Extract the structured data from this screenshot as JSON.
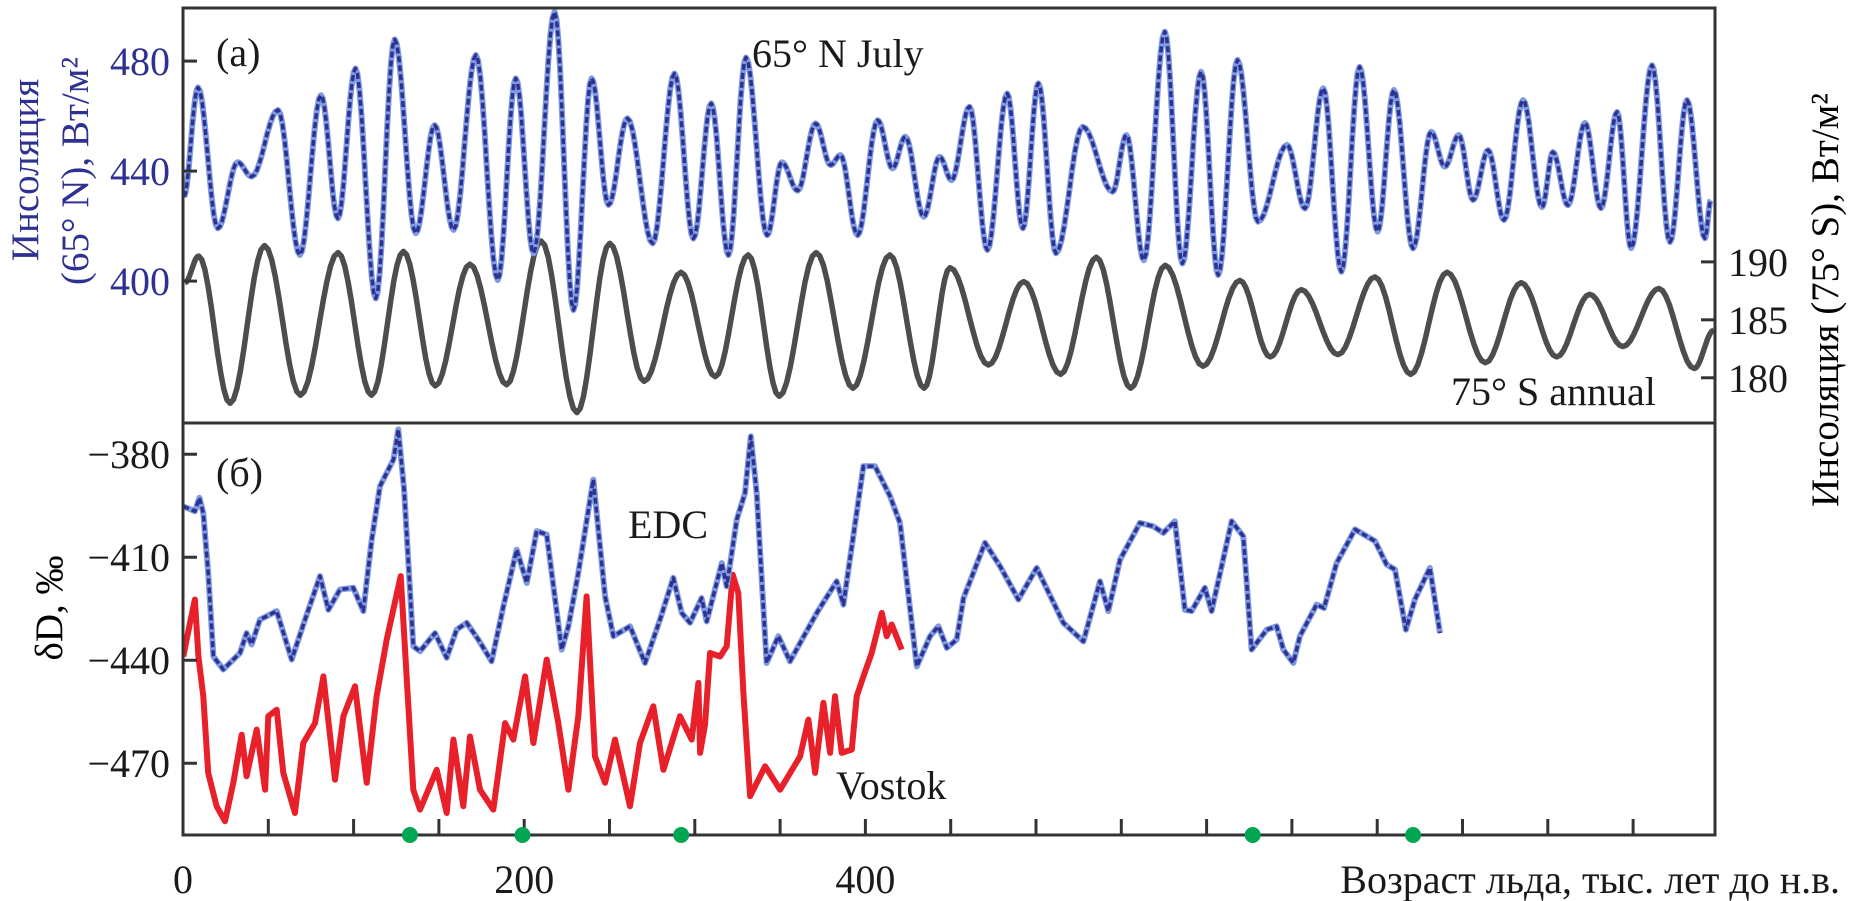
{
  "figure": {
    "x_label": "Возраст льда, тыс. лет до н.в.",
    "x_ticks": [
      "0",
      "200",
      "400"
    ],
    "x_tick_values": [
      0,
      200,
      400
    ],
    "xlim": [
      0,
      898
    ],
    "minor_tick_step": 50,
    "markers": {
      "name": "green dots on age axis",
      "ages": [
        133,
        199,
        292,
        627,
        721
      ],
      "color": "#00a651"
    }
  },
  "colors": {
    "blue": "#2e3192",
    "blue_light": "#7f9be0",
    "gray": "#4d4d4d",
    "red": "#e8202a",
    "green": "#00a651",
    "axis": "#333333"
  },
  "chart_data": [
    {
      "type": "line",
      "panel_label": "(a)",
      "left_axis": {
        "label_line1": "Инсоляция",
        "label_line2": "(65° N), Вт/м²",
        "ticks": [
          "480",
          "440",
          "400"
        ],
        "tick_values": [
          480,
          440,
          400
        ],
        "ylim": [
          348.4,
          499.3
        ]
      },
      "right_axis": {
        "label": "Инсоляция (75° S), Вт/м²",
        "ticks": [
          "190",
          "185",
          "180"
        ],
        "tick_values": [
          190,
          185,
          180
        ],
        "ylim": [
          176.1,
          211.9
        ]
      },
      "series": [
        {
          "name": "65° N July",
          "axis": "left",
          "x_extrema": [
            0.5,
            8.8,
            20.4,
            32.0,
            40.2,
            55.7,
            68.5,
            80.9,
            90.8,
            101.1,
            113.0,
            124.1,
            136.4,
            147.5,
            158.6,
            171.7,
            184.5,
            195.1,
            205.5,
            217.8,
            228.9,
            239.5,
            249.4,
            260.5,
            275.3,
            288.1,
            299.2,
            309.6,
            319.7,
            330.0,
            342.4,
            351.0,
            360.3,
            370.8,
            379.6,
            385.4,
            395.4,
            407.2,
            415.9,
            423.4,
            434.2,
            443.5,
            450.5,
            461.0,
            471.5,
            483.1,
            492.3,
            501.4,
            511.7,
            527.4,
            544.9,
            553.0,
            563.2,
            575.5,
            585.8,
            596.8,
            606.8,
            618.1,
            630.1,
            647.1,
            657.7,
            668.4,
            679.0,
            689.7,
            700.2,
            709.8,
            721.0,
            731.6,
            739.6,
            747.8,
            756.2,
            765.0,
            774.3,
            785.5,
            796.6,
            803.0,
            811.8,
            821.8,
            831.2,
            840.6,
            848.8,
            861.1,
            871.6,
            881.6,
            892.1,
            895.6
          ],
          "y_extrema": [
            430.7,
            470.4,
            419.2,
            443.2,
            438.0,
            462.2,
            409.5,
            467.6,
            422.8,
            477.3,
            393.7,
            487.9,
            417.4,
            456.7,
            418.6,
            482.2,
            400.4,
            473.7,
            410.1,
            497.9,
            389.5,
            473.7,
            427.7,
            459.2,
            413.7,
            475.5,
            415.5,
            464.6,
            409.5,
            481.3,
            416.7,
            443.2,
            432.9,
            457.3,
            442.2,
            445.8,
            416.7,
            458.5,
            441.0,
            452.5,
            423.4,
            445.2,
            436.7,
            463.4,
            411.3,
            468.2,
            419.2,
            471.9,
            410.1,
            456.1,
            432.5,
            453.1,
            407.6,
            490.7,
            406.4,
            476.1,
            402.2,
            480.4,
            421.6,
            449.5,
            426.4,
            470.1,
            403.4,
            477.9,
            418.0,
            469.5,
            411.9,
            454.3,
            441.6,
            453.1,
            429.5,
            447.6,
            422.2,
            465.8,
            426.9,
            446.9,
            427.6,
            457.5,
            426.5,
            461.5,
            412.0,
            478.5,
            414.2,
            465.8,
            415.6,
            429.5
          ]
        },
        {
          "name": "75° S annual",
          "axis": "right",
          "x_extrema": [
            1.1,
            9.2,
            27.6,
            47.8,
            68.8,
            90.9,
            110.5,
            129.2,
            147.9,
            168.1,
            189.7,
            209.9,
            230.9,
            250.1,
            270.3,
            291.9,
            312.0,
            331.3,
            349.5,
            371.1,
            392.7,
            414.3,
            434.4,
            449.6,
            472.1,
            492.8,
            514.4,
            535.4,
            555.5,
            575.7,
            597.9,
            619.5,
            637.3,
            655.5,
            677.0,
            698.6,
            719.6,
            740.9,
            763.4,
            784.4,
            805.2,
            824.5,
            844.0,
            865.1,
            885.8,
            897.3
          ],
          "y_extrema": [
            188.2,
            190.5,
            177.8,
            191.4,
            178.5,
            190.8,
            178.5,
            190.9,
            179.3,
            189.8,
            179.4,
            191.8,
            177.0,
            191.6,
            179.7,
            189.1,
            180.1,
            190.6,
            178.4,
            190.8,
            179.1,
            190.6,
            179.1,
            189.5,
            181.1,
            188.3,
            180.3,
            190.4,
            179.1,
            189.7,
            181.0,
            188.4,
            181.8,
            187.6,
            182.0,
            188.7,
            180.3,
            189.1,
            181.3,
            188.2,
            181.8,
            187.2,
            182.7,
            187.7,
            180.8,
            184.1
          ]
        }
      ]
    },
    {
      "type": "line",
      "panel_label": "(б)",
      "left_axis": {
        "label": "δD, ‰",
        "ticks": [
          "−380",
          "−410",
          "−440",
          "−470"
        ],
        "tick_values": [
          -380,
          -410,
          -440,
          -470
        ],
        "ylim": [
          -490.9,
          -370.9
        ]
      },
      "series": [
        {
          "name": "EDC",
          "x": [
            0.2,
            7.0,
            9.6,
            11.9,
            14.8,
            17.8,
            23.6,
            33.4,
            37.3,
            40.2,
            45.1,
            54.9,
            63.7,
            71.5,
            80.3,
            85.2,
            92.0,
            99.8,
            105.7,
            110.6,
            115.5,
            123.3,
            126.2,
            129.6,
            135.0,
            138.9,
            147.7,
            154.6,
            160.4,
            166.3,
            173.1,
            180.9,
            187.8,
            195.6,
            201.5,
            207.3,
            213.2,
            222.0,
            225.9,
            231.7,
            240.5,
            247.4,
            252.3,
            262.0,
            270.8,
            279.6,
            287.4,
            292.3,
            297.2,
            304.0,
            307.0,
            315.8,
            318.7,
            324.6,
            329.4,
            332.8,
            336.3,
            342.1,
            349.0,
            355.8,
            371.5,
            383.2,
            387.1,
            398.8,
            405.6,
            414.4,
            420.3,
            430.1,
            437.9,
            442.8,
            447.7,
            453.5,
            457.5,
            470.1,
            478.9,
            489.7,
            500.4,
            516.0,
            527.8,
            537.5,
            542.4,
            549.3,
            560.9,
            568.7,
            574.6,
            581.4,
            587.3,
            591.2,
            599.0,
            602.9,
            614.7,
            621.5,
            626.4,
            635.2,
            641.0,
            645.0,
            650.8,
            654.7,
            664.5,
            668.8,
            676.2,
            687.0,
            698.7,
            705.5,
            710.4,
            716.8,
            722.1,
            730.9,
            736.8
          ],
          "y": [
            -395.2,
            -396.6,
            -392.7,
            -397.1,
            -414.6,
            -438.9,
            -442.7,
            -437.9,
            -432.1,
            -435.4,
            -428.2,
            -425.7,
            -439.8,
            -428.2,
            -415.5,
            -425.3,
            -419.4,
            -418.9,
            -425.7,
            -404.9,
            -389.3,
            -381.6,
            -372.8,
            -390.3,
            -435.9,
            -437.4,
            -432.1,
            -439.3,
            -431.1,
            -429.1,
            -434.0,
            -440.3,
            -424.3,
            -407.8,
            -417.5,
            -402.4,
            -403.4,
            -436.9,
            -430.1,
            -414.6,
            -387.4,
            -421.4,
            -433.0,
            -430.1,
            -440.8,
            -428.2,
            -416.0,
            -426.2,
            -429.1,
            -421.9,
            -428.7,
            -411.7,
            -418.5,
            -399.0,
            -391.3,
            -374.8,
            -391.3,
            -440.8,
            -433.0,
            -440.3,
            -426.2,
            -417.0,
            -423.8,
            -383.5,
            -383.5,
            -392.2,
            -400.0,
            -441.8,
            -433.0,
            -430.1,
            -436.4,
            -434.0,
            -421.9,
            -405.8,
            -412.6,
            -422.3,
            -413.1,
            -429.1,
            -434.5,
            -417.0,
            -425.7,
            -410.7,
            -400.0,
            -401.0,
            -402.9,
            -399.5,
            -425.3,
            -425.7,
            -418.9,
            -425.7,
            -399.5,
            -403.9,
            -436.9,
            -431.1,
            -430.1,
            -436.9,
            -440.8,
            -433.0,
            -423.8,
            -424.8,
            -411.7,
            -401.9,
            -405.3,
            -412.1,
            -413.6,
            -431.1,
            -422.3,
            -413.1,
            -432.1
          ]
        },
        {
          "name": "Vostok",
          "x": [
            0.2,
            4.1,
            7.0,
            9.0,
            11.9,
            14.8,
            19.7,
            24.6,
            29.5,
            34.4,
            37.3,
            43.2,
            48.1,
            50.0,
            54.9,
            58.8,
            65.6,
            70.5,
            77.4,
            82.3,
            89.1,
            94.0,
            100.8,
            107.7,
            113.5,
            119.4,
            127.6,
            135.0,
            138.9,
            148.7,
            154.6,
            158.5,
            164.3,
            168.2,
            174.1,
            181.9,
            188.8,
            193.6,
            200.5,
            205.4,
            213.2,
            220.0,
            225.9,
            231.7,
            236.6,
            241.5,
            247.4,
            253.2,
            262.0,
            267.9,
            275.7,
            281.6,
            291.3,
            298.2,
            302.1,
            303.1,
            306.0,
            308.9,
            314.8,
            318.7,
            322.2,
            325.5,
            328.5,
            332.4,
            341.2,
            350.0,
            361.7,
            366.6,
            370.5,
            375.4,
            379.3,
            382.2,
            386.1,
            392.0,
            394.9,
            398.8,
            403.7,
            409.6,
            412.5,
            415.4,
            421.3
          ],
          "y": [
            -438.9,
            -429.1,
            -422.3,
            -438.9,
            -450.5,
            -472.8,
            -482.5,
            -486.9,
            -475.7,
            -461.7,
            -473.8,
            -460.2,
            -477.7,
            -456.3,
            -454.4,
            -472.8,
            -484.5,
            -464.1,
            -458.3,
            -444.7,
            -474.8,
            -456.3,
            -447.6,
            -475.7,
            -450.5,
            -434.0,
            -415.5,
            -477.7,
            -483.5,
            -471.9,
            -484.5,
            -463.1,
            -482.5,
            -462.2,
            -477.7,
            -483.5,
            -458.3,
            -463.1,
            -444.7,
            -464.1,
            -439.8,
            -458.3,
            -477.7,
            -456.3,
            -421.4,
            -468.0,
            -475.7,
            -463.1,
            -482.5,
            -464.1,
            -453.4,
            -471.9,
            -456.3,
            -463.1,
            -446.6,
            -467.0,
            -458.8,
            -437.9,
            -438.9,
            -435.9,
            -415.1,
            -420.4,
            -449.5,
            -479.6,
            -470.9,
            -477.7,
            -468.0,
            -457.3,
            -472.8,
            -452.4,
            -467.0,
            -450.5,
            -467.0,
            -466.0,
            -450.5,
            -444.7,
            -437.9,
            -426.2,
            -433.0,
            -429.6,
            -436.9
          ]
        }
      ]
    }
  ]
}
